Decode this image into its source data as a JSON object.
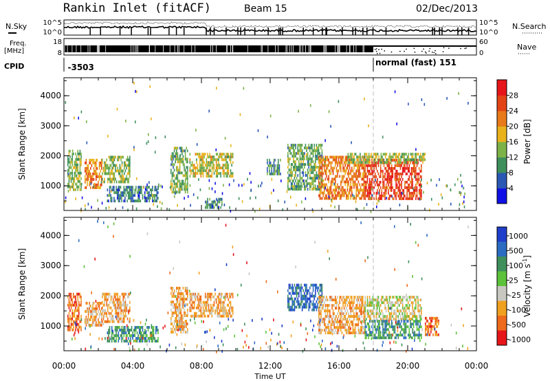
{
  "header": {
    "title": "Rankin Inlet (fitACF)",
    "beam": "Beam 15",
    "date": "02/Dec/2013"
  },
  "status_panels": {
    "nsky_label": "N.Sky",
    "nsearch_label": "N.Search",
    "freq_label_line1": "Freq.",
    "freq_label_line2": "[MHz]",
    "nave_label": "Nave",
    "cpid_label": "CPID",
    "nsky_ticks": [
      "10^5",
      "10^0"
    ],
    "nsearch_ticks": [
      "10^5",
      "10^0"
    ],
    "freq_ticks": [
      "18",
      "8"
    ],
    "nave_ticks": [
      "60",
      "0"
    ],
    "cpid_segments": [
      {
        "start_hour": 0.1,
        "label": "-3503"
      },
      {
        "start_hour": 18.0,
        "label": "normal (fast) 151"
      }
    ]
  },
  "chart_data": [
    {
      "type": "heatmap",
      "name": "power",
      "ylabel": "Slant Range [km]",
      "xlabel": "Time UT",
      "x_ticks": [
        "00:00",
        "04:00",
        "08:00",
        "12:00",
        "16:00",
        "20:00",
        "00:00"
      ],
      "x_tick_hours": [
        0,
        4,
        8,
        12,
        16,
        20,
        24
      ],
      "xlim": [
        0,
        24
      ],
      "y_ticks": [
        1000,
        2000,
        3000,
        4000
      ],
      "ylim": [
        180,
        4600
      ],
      "colorbar": {
        "label": "Power [dB]",
        "ticks": [
          "4",
          "8",
          "12",
          "16",
          "20",
          "24",
          "28"
        ],
        "tick_values": [
          4,
          8,
          12,
          16,
          20,
          24,
          28
        ],
        "range": [
          0,
          32
        ],
        "colors": [
          "#1010e6",
          "#2b57b5",
          "#3e8f5c",
          "#7db248",
          "#e9b21c",
          "#e87a1a",
          "#e34416",
          "#e6151a"
        ]
      },
      "regions": [
        {
          "t0": 0.2,
          "t1": 1.0,
          "r0": 900,
          "r1": 2200,
          "value": 14
        },
        {
          "t0": 1.2,
          "t1": 2.2,
          "r0": 900,
          "r1": 1900,
          "value": 22
        },
        {
          "t0": 2.2,
          "t1": 3.8,
          "r0": 1100,
          "r1": 2000,
          "value": 14
        },
        {
          "t0": 2.5,
          "t1": 5.5,
          "r0": 500,
          "r1": 1000,
          "value": 8
        },
        {
          "t0": 6.2,
          "t1": 7.2,
          "r0": 800,
          "r1": 2300,
          "value": 12
        },
        {
          "t0": 7.3,
          "t1": 9.8,
          "r0": 1300,
          "r1": 2100,
          "value": 16
        },
        {
          "t0": 8.2,
          "t1": 9.2,
          "r0": 300,
          "r1": 600,
          "value": 10
        },
        {
          "t0": 11.8,
          "t1": 12.6,
          "r0": 1400,
          "r1": 1900,
          "value": 10
        },
        {
          "t0": 13.0,
          "t1": 15.0,
          "r0": 900,
          "r1": 2400,
          "value": 12
        },
        {
          "t0": 14.8,
          "t1": 17.5,
          "r0": 600,
          "r1": 2000,
          "value": 22
        },
        {
          "t0": 17.5,
          "t1": 20.8,
          "r0": 600,
          "r1": 1900,
          "value": 27
        },
        {
          "t0": 16.5,
          "t1": 21.0,
          "r0": 1800,
          "r1": 2100,
          "value": 15
        }
      ]
    },
    {
      "type": "heatmap",
      "name": "velocity",
      "ylabel": "Slant Range [km]",
      "xlabel": "Time UT",
      "x_ticks": [
        "00:00",
        "04:00",
        "08:00",
        "12:00",
        "16:00",
        "20:00",
        "00:00"
      ],
      "x_tick_hours": [
        0,
        4,
        8,
        12,
        16,
        20,
        24
      ],
      "xlim": [
        0,
        24
      ],
      "y_ticks": [
        1000,
        2000,
        3000,
        4000
      ],
      "ylim": [
        180,
        4600
      ],
      "colorbar": {
        "label": "Velocity [m s^-1]",
        "ticks": [
          "1000",
          "500",
          "100",
          "25",
          "-25",
          "-100",
          "-500",
          "-1000"
        ],
        "colors": [
          "#1f3ec9",
          "#2b6cc2",
          "#3e8f5c",
          "#5cc23a",
          "#c8c8c0",
          "#f0a020",
          "#ee6a1c",
          "#e6151a"
        ]
      },
      "regions": [
        {
          "t0": 0.2,
          "t1": 1.0,
          "r0": 900,
          "r1": 2100,
          "value": 6
        },
        {
          "t0": 1.2,
          "t1": 2.2,
          "r0": 1000,
          "r1": 1800,
          "value": 5
        },
        {
          "t0": 2.2,
          "t1": 3.8,
          "r0": 1100,
          "r1": 2100,
          "value": 5
        },
        {
          "t0": 2.5,
          "t1": 5.5,
          "r0": 500,
          "r1": 1000,
          "value": 2
        },
        {
          "t0": 6.2,
          "t1": 7.2,
          "r0": 800,
          "r1": 2300,
          "value": 5
        },
        {
          "t0": 7.3,
          "t1": 9.8,
          "r0": 1300,
          "r1": 2100,
          "value": 5
        },
        {
          "t0": 13.0,
          "t1": 15.0,
          "r0": 1500,
          "r1": 2400,
          "value": 1
        },
        {
          "t0": 14.8,
          "t1": 17.5,
          "r0": 800,
          "r1": 2000,
          "value": 5
        },
        {
          "t0": 17.5,
          "t1": 20.8,
          "r0": 1200,
          "r1": 2000,
          "value": 4
        },
        {
          "t0": 17.5,
          "t1": 20.8,
          "r0": 600,
          "r1": 1200,
          "value": 2
        },
        {
          "t0": 21.0,
          "t1": 21.8,
          "r0": 700,
          "r1": 1300,
          "value": 6
        }
      ]
    }
  ]
}
